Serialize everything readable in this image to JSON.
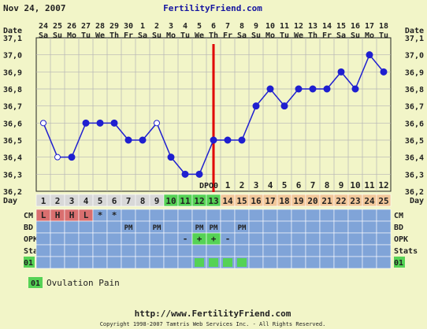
{
  "header": {
    "date": "Nov 24, 2007",
    "site": "FertilityFriend.com"
  },
  "footer": {
    "url": "http://www.FertilityFriend.com",
    "copyright": "Copyright 1998-2007 Tamtris Web Services Inc. - All Rights Reserved."
  },
  "legend": {
    "code": "01",
    "label": "Ovulation Pain"
  },
  "colors": {
    "background": "#f2f5c8",
    "line": "#1f1fd0",
    "coverline": "#e00000",
    "cycle_pre": "#d8d8d8",
    "cycle_fertile": "#55d255",
    "cycle_post": "#f2c79a",
    "row_blue": "#80a4d8",
    "cm_red": "#d96f6f",
    "legend_green": "#55d255",
    "border": "#222222",
    "link": "#1515a0"
  },
  "chart_data": {
    "type": "line",
    "title": "",
    "x_label_rows": [
      "Date",
      "Day"
    ],
    "dates": [
      "24",
      "25",
      "26",
      "27",
      "28",
      "29",
      "30",
      "1",
      "2",
      "3",
      "4",
      "5",
      "6",
      "7",
      "8",
      "9",
      "10",
      "11",
      "12",
      "13",
      "14",
      "15",
      "16",
      "17",
      "18"
    ],
    "weekdays": [
      "Sa",
      "Su",
      "Mo",
      "Tu",
      "We",
      "Th",
      "Fr",
      "Sa",
      "Su",
      "Mo",
      "Tu",
      "We",
      "Th",
      "Fr",
      "Sa",
      "Su",
      "Mo",
      "Tu",
      "We",
      "Th",
      "Fr",
      "Sa",
      "Su",
      "Mo",
      "Tu"
    ],
    "cycle_days": [
      "1",
      "2",
      "3",
      "4",
      "5",
      "6",
      "7",
      "8",
      "9",
      "10",
      "11",
      "12",
      "13",
      "14",
      "15",
      "16",
      "17",
      "18",
      "19",
      "20",
      "21",
      "22",
      "23",
      "24",
      "25"
    ],
    "temperatures": [
      36.6,
      36.4,
      36.4,
      36.6,
      36.6,
      36.6,
      36.5,
      36.5,
      36.6,
      36.4,
      36.3,
      36.3,
      36.5,
      36.5,
      36.5,
      36.7,
      36.8,
      36.7,
      36.8,
      36.8,
      36.8,
      36.9,
      36.8,
      37.0,
      36.9
    ],
    "open_points": [
      0,
      1,
      8
    ],
    "coverline_day_index": 12,
    "dpo_label": "DPO",
    "dpo_values": [
      "0",
      "1",
      "2",
      "3",
      "4",
      "5",
      "6",
      "7",
      "8",
      "9",
      "10",
      "11",
      "12"
    ],
    "dpo_start_index": 12,
    "ylim": [
      36.2,
      37.1
    ],
    "yticks": [
      "37,1",
      "37,0",
      "36,9",
      "36,8",
      "36,7",
      "36,6",
      "36,5",
      "36,4",
      "36,3",
      "36,2"
    ],
    "grid": true,
    "cycle_phase": {
      "fertile": [
        9,
        12
      ],
      "post_start": 13
    },
    "rows": [
      {
        "label": "CM",
        "cells": {
          "0": "L",
          "1": "H",
          "2": "H",
          "3": "L",
          "4": "*",
          "5": "*"
        },
        "red": [
          0,
          1,
          2,
          3
        ]
      },
      {
        "label": "BD",
        "cells": {
          "6": "PM",
          "8": "PM",
          "11": "PM",
          "12": "PM",
          "14": "PM"
        }
      },
      {
        "label": "OPK",
        "cells": {
          "10": "-",
          "11": "+",
          "12": "+",
          "13": "-"
        },
        "green": [
          11,
          12
        ]
      },
      {
        "label": "Stats",
        "cells": {}
      },
      {
        "label": "01",
        "cells": {},
        "green": [
          11,
          12,
          13,
          14
        ]
      }
    ]
  }
}
